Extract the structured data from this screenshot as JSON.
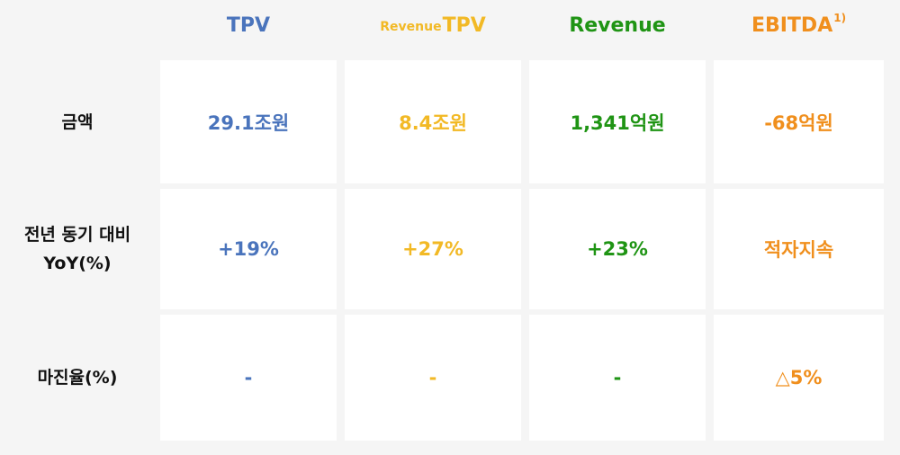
{
  "columns": {
    "tpv": {
      "label": "TPV"
    },
    "revenue_tpv": {
      "prefix": "Revenue",
      "label": "TPV"
    },
    "revenue": {
      "label": "Revenue"
    },
    "ebitda": {
      "label": "EBITDA",
      "footnote": "1)"
    }
  },
  "rows": {
    "amount": {
      "label": "금액"
    },
    "yoy": {
      "label_line1": "전년 동기 대비",
      "label_line2": "YoY(%)"
    },
    "margin": {
      "label": "마진율(%)"
    }
  },
  "values": {
    "amount": {
      "tpv": "29.1조원",
      "revenue_tpv": "8.4조원",
      "revenue": "1,341억원",
      "ebitda": "-68억원"
    },
    "yoy": {
      "tpv": "+19%",
      "revenue_tpv": "+27%",
      "revenue": "+23%",
      "ebitda": "적자지속"
    },
    "margin": {
      "tpv": "-",
      "revenue_tpv": "-",
      "revenue": "-",
      "ebitda": "△5%"
    }
  },
  "colors": {
    "tpv": "#4a74bc",
    "revenue_tpv": "#f2b925",
    "revenue": "#1f9414",
    "ebitda": "#f08f1d",
    "label": "#111111",
    "background": "#f5f5f5",
    "cell": "#ffffff"
  }
}
